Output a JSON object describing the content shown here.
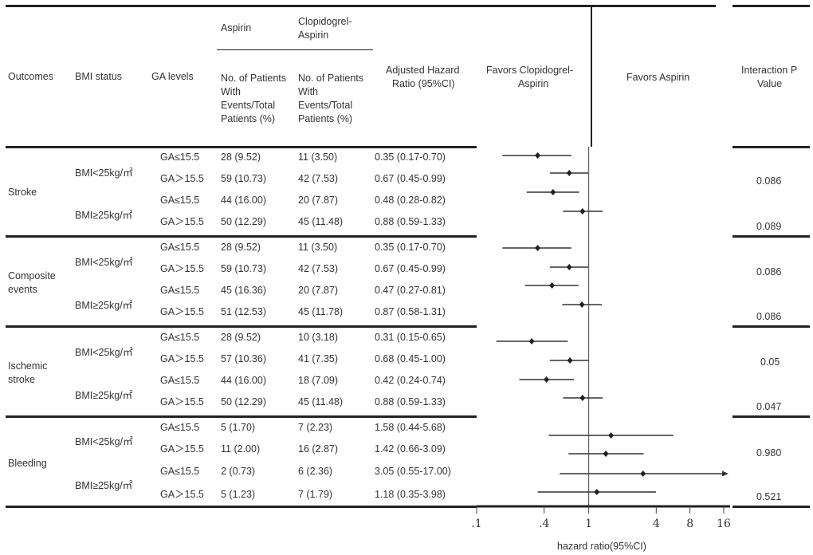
{
  "header": {
    "outcomes": "Outcomes",
    "bmi_status": "BMI status",
    "ga_levels": "GA levels",
    "aspirin": "Aspirin",
    "clop_aspirin_1": "Clopidogrel-",
    "clop_aspirin_2": "Aspirin",
    "events_lines": [
      "No. of Patients",
      "With",
      "Events/Total",
      "Patients (%)"
    ],
    "ahr_1": "Adjusted Hazard",
    "ahr_2": "Ratio (95%CI)",
    "favors_left_1": "Favors Clopidogrel-",
    "favors_left_2": "Aspirin",
    "favors_right": "Favors Aspirin",
    "interaction_1": "Interaction P",
    "interaction_2": "Value"
  },
  "groups": [
    {
      "outcome_lines": [
        "Stroke"
      ],
      "bmi": [
        "BMI<25kg/㎡",
        "BMI≥25kg/㎡"
      ],
      "p_values": [
        "0.086",
        "0.089"
      ],
      "rows": [
        {
          "ga": "GA≤15.5",
          "aspirin": "28 (9.52)",
          "clop": "11 (3.50)",
          "ahr": "0.35 (0.17-0.70)"
        },
        {
          "ga": "GA＞15.5",
          "aspirin": "59 (10.73)",
          "clop": "42 (7.53)",
          "ahr": "0.67 (0.45-0.99)"
        },
        {
          "ga": "GA≤15.5",
          "aspirin": "44 (16.00)",
          "clop": "20 (7.87)",
          "ahr": "0.48 (0.28-0.82)"
        },
        {
          "ga": "GA＞15.5",
          "aspirin": "50 (12.29)",
          "clop": "45 (11.48)",
          "ahr": "0.88 (0.59-1.33)"
        }
      ]
    },
    {
      "outcome_lines": [
        "Composite",
        "events"
      ],
      "bmi": [
        "BMI<25kg/㎡",
        "BMI≥25kg/㎡"
      ],
      "p_values": [
        "0.086",
        "0.086"
      ],
      "rows": [
        {
          "ga": "GA≤15.5",
          "aspirin": "28 (9.52)",
          "clop": "11 (3.50)",
          "ahr": "0.35 (0.17-0.70)"
        },
        {
          "ga": "GA＞15.5",
          "aspirin": "59 (10.73)",
          "clop": "42 (7.53)",
          "ahr": "0.67 (0.45-0.99)"
        },
        {
          "ga": "GA≤15.5",
          "aspirin": "45 (16.36)",
          "clop": "20 (7.87)",
          "ahr": "0.47 (0.27-0.81)"
        },
        {
          "ga": "GA＞15.5",
          "aspirin": "51 (12.53)",
          "clop": "45 (11.78)",
          "ahr": "0.87 (0.58-1.31)"
        }
      ]
    },
    {
      "outcome_lines": [
        "Ischemic",
        "stroke"
      ],
      "bmi": [
        "BMI<25kg/㎡",
        "BMI≥25kg/㎡"
      ],
      "p_values": [
        "0.05",
        "0.047"
      ],
      "rows": [
        {
          "ga": "GA≤15.5",
          "aspirin": "28 (9.52)",
          "clop": "10 (3.18)",
          "ahr": "0.31 (0.15-0.65)"
        },
        {
          "ga": "GA＞15.5",
          "aspirin": "57 (10.36)",
          "clop": "41 (7.35)",
          "ahr": "0.68 (0.45-1.00)"
        },
        {
          "ga": "GA≤15.5",
          "aspirin": "44 (16.00)",
          "clop": "18 (7.09)",
          "ahr": "0.42 (0.24-0.74)"
        },
        {
          "ga": "GA＞15.5",
          "aspirin": "50 (12.29)",
          "clop": "45 (11.48)",
          "ahr": "0.88 (0.59-1.33)"
        }
      ]
    },
    {
      "outcome_lines": [
        "Bleeding"
      ],
      "bmi": [
        "BMI<25kg/㎡",
        "BMI≥25kg/㎡"
      ],
      "p_values": [
        "0.980",
        "0.521"
      ],
      "rows": [
        {
          "ga": "GA≤15.5",
          "aspirin": "5 (1.70)",
          "clop": "7 (2.23)",
          "ahr": "1.58 (0.44-5.68)"
        },
        {
          "ga": "GA＞15.5",
          "aspirin": "11 (2.00)",
          "clop": "16 (2.87)",
          "ahr": "1.42 (0.66-3.09)"
        },
        {
          "ga": "GA≤15.5",
          "aspirin": "2 (0.73)",
          "clop": "6 (2.36)",
          "ahr": "3.05 (0.55-17.00)"
        },
        {
          "ga": "GA＞15.5",
          "aspirin": "5 (1.23)",
          "clop": "7 (1.79)",
          "ahr": "1.18 (0.35-3.98)"
        }
      ]
    }
  ],
  "chart_data": {
    "type": "forest",
    "xscale": "log",
    "xlim": [
      0.1,
      16
    ],
    "reference_line": 1,
    "xticks": [
      0.1,
      0.4,
      1,
      4,
      8,
      16
    ],
    "xtick_labels": [
      ".1",
      ".4",
      "1",
      "4",
      "8",
      "16"
    ],
    "xlabel": "hazard ratio(95%CI)",
    "left_label": "Favors Clopidogrel-Aspirin",
    "right_label": "Favors Aspirin",
    "points": [
      {
        "group": "Stroke",
        "hr": 0.35,
        "lo": 0.17,
        "hi": 0.7
      },
      {
        "group": "Stroke",
        "hr": 0.67,
        "lo": 0.45,
        "hi": 0.99
      },
      {
        "group": "Stroke",
        "hr": 0.48,
        "lo": 0.28,
        "hi": 0.82
      },
      {
        "group": "Stroke",
        "hr": 0.88,
        "lo": 0.59,
        "hi": 1.33
      },
      {
        "group": "Composite events",
        "hr": 0.35,
        "lo": 0.17,
        "hi": 0.7
      },
      {
        "group": "Composite events",
        "hr": 0.67,
        "lo": 0.45,
        "hi": 0.99
      },
      {
        "group": "Composite events",
        "hr": 0.47,
        "lo": 0.27,
        "hi": 0.81
      },
      {
        "group": "Composite events",
        "hr": 0.87,
        "lo": 0.58,
        "hi": 1.31
      },
      {
        "group": "Ischemic stroke",
        "hr": 0.31,
        "lo": 0.15,
        "hi": 0.65
      },
      {
        "group": "Ischemic stroke",
        "hr": 0.68,
        "lo": 0.45,
        "hi": 1.0
      },
      {
        "group": "Ischemic stroke",
        "hr": 0.42,
        "lo": 0.24,
        "hi": 0.74
      },
      {
        "group": "Ischemic stroke",
        "hr": 0.88,
        "lo": 0.59,
        "hi": 1.33
      },
      {
        "group": "Bleeding",
        "hr": 1.58,
        "lo": 0.44,
        "hi": 5.68
      },
      {
        "group": "Bleeding",
        "hr": 1.42,
        "lo": 0.66,
        "hi": 3.09
      },
      {
        "group": "Bleeding",
        "hr": 3.05,
        "lo": 0.55,
        "hi": 17.0,
        "arrow": true
      },
      {
        "group": "Bleeding",
        "hr": 1.18,
        "lo": 0.35,
        "hi": 3.98
      }
    ]
  }
}
